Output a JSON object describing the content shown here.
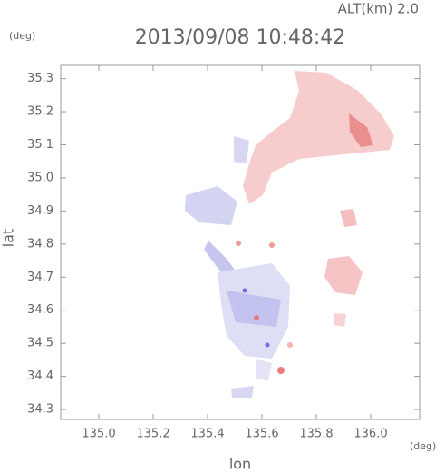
{
  "chart_data": {
    "type": "map",
    "title": "2013/09/08 10:48:42",
    "subtitle": "ALT(km) 2.0",
    "y_unit": "(deg)",
    "x_unit": "(deg)",
    "x_label": "lon",
    "y_label": "lat",
    "xlim": [
      134.86,
      136.18
    ],
    "ylim": [
      34.27,
      35.34
    ],
    "xticks": [
      {
        "value": 135.0,
        "label": "135.0"
      },
      {
        "value": 135.2,
        "label": "135.2"
      },
      {
        "value": 135.4,
        "label": "135.4"
      },
      {
        "value": 135.6,
        "label": "135.6"
      },
      {
        "value": 135.8,
        "label": "135.8"
      },
      {
        "value": 136.0,
        "label": "136.0"
      }
    ],
    "yticks": [
      {
        "value": 34.3,
        "label": "34.3"
      },
      {
        "value": 34.4,
        "label": "34.4"
      },
      {
        "value": 34.5,
        "label": "34.5"
      },
      {
        "value": 34.6,
        "label": "34.6"
      },
      {
        "value": 34.7,
        "label": "34.7"
      },
      {
        "value": 34.8,
        "label": "34.8"
      },
      {
        "value": 34.9,
        "label": "34.9"
      },
      {
        "value": 35.0,
        "label": "35.0"
      },
      {
        "value": 35.1,
        "label": "35.1"
      },
      {
        "value": 35.2,
        "label": "35.2"
      },
      {
        "value": 35.3,
        "label": "35.3"
      }
    ]
  }
}
